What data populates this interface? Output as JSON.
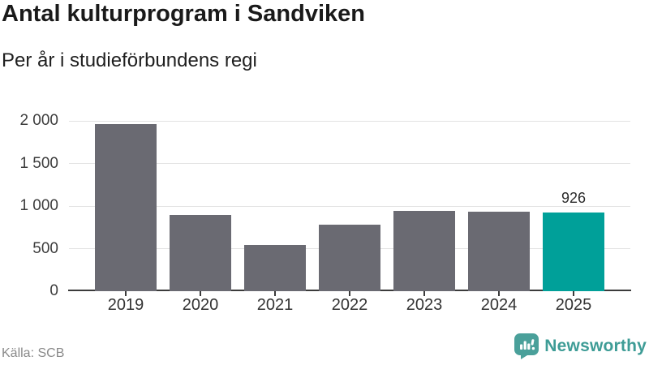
{
  "header": {
    "title": "Antal kulturprogram i Sandviken",
    "subtitle": "Per år i studieförbundens regi"
  },
  "footer": {
    "source": "Källa: SCB",
    "brand": "Newsworthy",
    "brand_icon": "speech-bubble-bar-chart-icon"
  },
  "colors": {
    "bar_default": "#6A6A72",
    "bar_highlight": "#00A099",
    "gridline": "#E3E3E3",
    "axis": "#3B3B3B",
    "brand_teal": "#3E9C96",
    "brand_bubble": "#4AA09A",
    "text_title": "#1A1A1A",
    "text_axis": "#3D3D3D",
    "text_source": "#8A8A8A"
  },
  "chart_data": {
    "type": "bar",
    "title": "Antal kulturprogram i Sandviken",
    "subtitle": "Per år i studieförbundens regi",
    "source": "Källa: SCB",
    "categories": [
      "2019",
      "2020",
      "2021",
      "2022",
      "2023",
      "2024",
      "2025"
    ],
    "values": [
      1965,
      900,
      540,
      780,
      945,
      935,
      926
    ],
    "highlight": {
      "category": "2025",
      "value": 926,
      "label": "926"
    },
    "yticks": [
      0,
      500,
      1000,
      1500,
      2000
    ],
    "ytick_labels": [
      "0",
      "500",
      "1 000",
      "1 500",
      "2 000"
    ],
    "ylim": [
      0,
      2000
    ],
    "xlabel": "",
    "ylabel": "",
    "grid": true,
    "legend": false
  }
}
